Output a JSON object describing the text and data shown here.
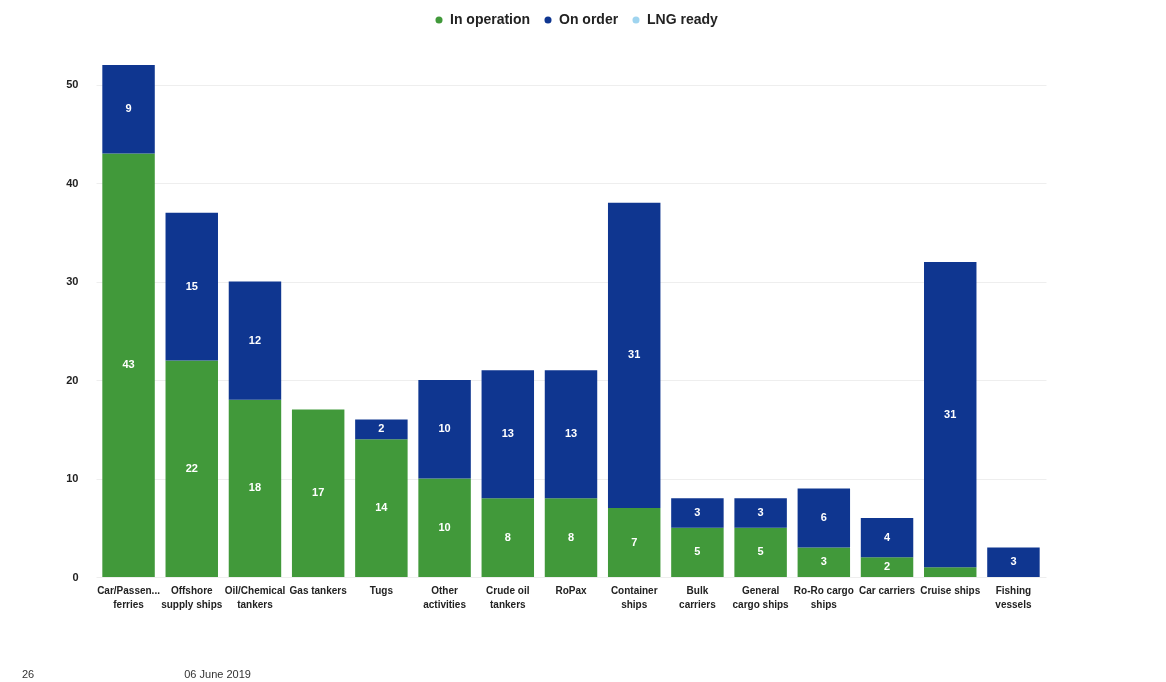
{
  "chart_data": {
    "type": "bar",
    "stacked": true,
    "categories": [
      "Car/Passen... ferries",
      "Offshore supply ships",
      "Oil/Chemical tankers",
      "Gas tankers",
      "Tugs",
      "Other activities",
      "Crude oil tankers",
      "RoPax",
      "Container ships",
      "Bulk carriers",
      "General cargo ships",
      "Ro-Ro cargo ships",
      "Car carriers",
      "Cruise ships",
      "Fishing vessels"
    ],
    "series": [
      {
        "name": "In operation",
        "color": "#41993a",
        "values": [
          43,
          22,
          18,
          17,
          14,
          10,
          8,
          8,
          7,
          5,
          5,
          3,
          2,
          1,
          0
        ],
        "value_labels": [
          "43",
          "22",
          "18",
          "17",
          "14",
          "10",
          "8",
          "8",
          "7",
          "5",
          "5",
          "3",
          "2",
          null,
          null
        ]
      },
      {
        "name": "On order",
        "color": "#0f3690",
        "values": [
          9,
          15,
          12,
          0,
          2,
          10,
          13,
          13,
          31,
          3,
          3,
          6,
          4,
          31,
          3
        ],
        "value_labels": [
          "9",
          "15",
          "12",
          null,
          "2",
          "10",
          "13",
          "13",
          "31",
          "3",
          "3",
          "6",
          "4",
          "31",
          "3"
        ]
      },
      {
        "name": "LNG ready",
        "color": "#9fd4ef",
        "values": [
          null,
          null,
          null,
          null,
          null,
          null,
          null,
          null,
          null,
          null,
          null,
          null,
          null,
          null,
          null
        ]
      }
    ],
    "ylim": [
      0,
      52
    ],
    "yticks": [
      0,
      10,
      20,
      30,
      40,
      50
    ],
    "grid": "y",
    "legend": "top",
    "annotations": [
      "26",
      "06 June 2019"
    ]
  }
}
